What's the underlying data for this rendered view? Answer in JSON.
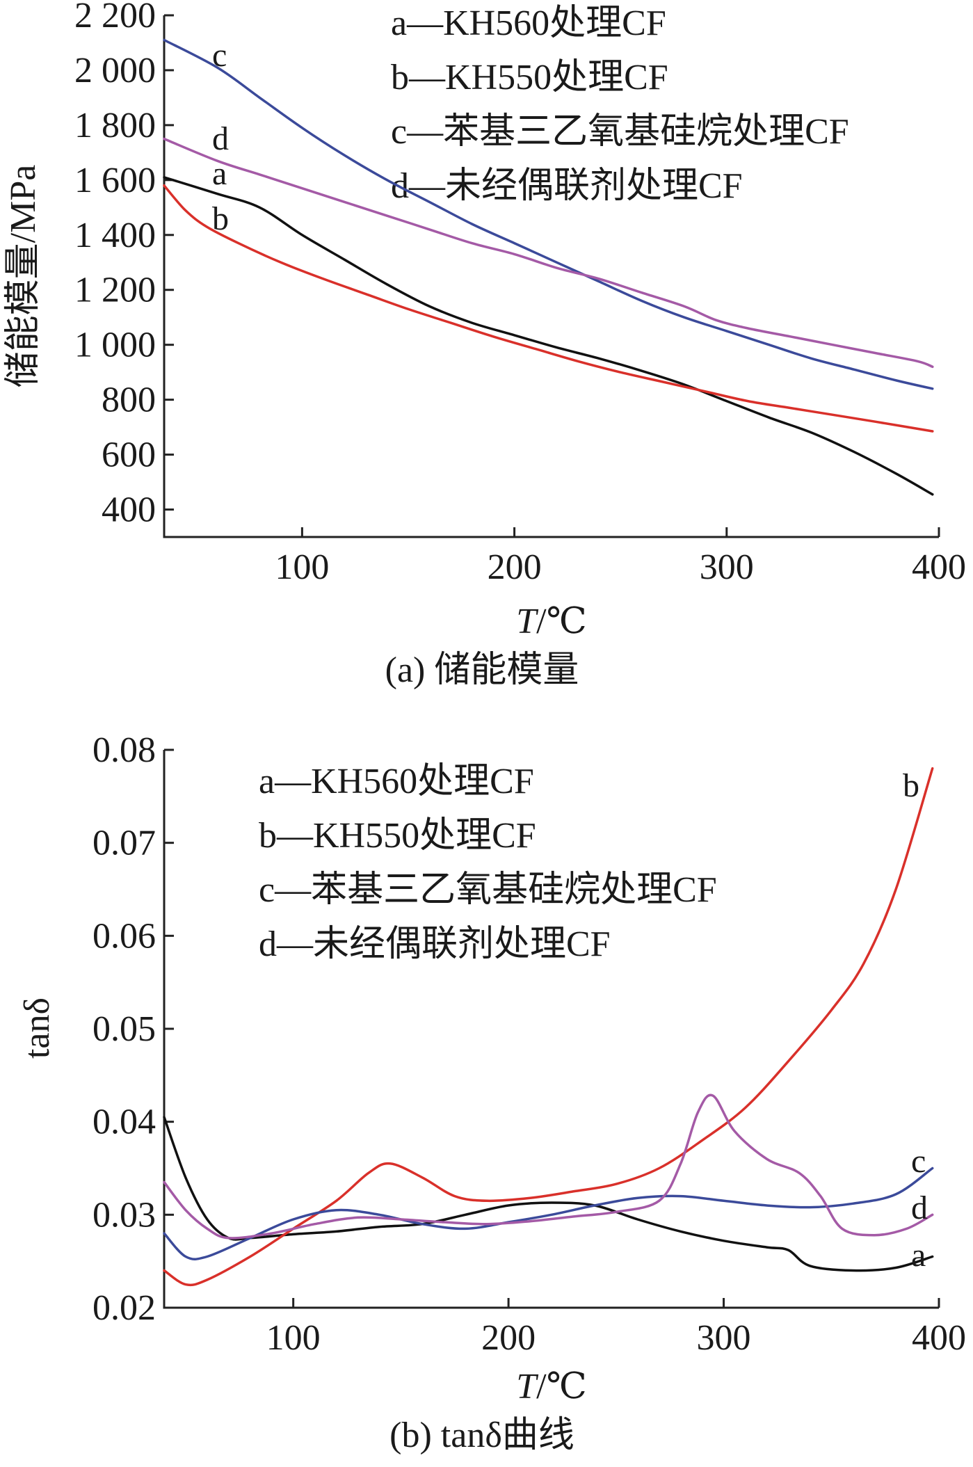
{
  "chart_data": [
    {
      "type": "line",
      "ylabel": "储能模量/MPa",
      "xlabel_italic": "T",
      "xlabel_unit": "/℃",
      "caption": "(a) 储能模量",
      "xlim": [
        35,
        400
      ],
      "ylim": [
        300,
        2200
      ],
      "xticks": [
        100,
        200,
        300,
        400
      ],
      "xtick_labels": [
        "100",
        "200",
        "300",
        "400"
      ],
      "yticks": [
        400,
        600,
        800,
        1000,
        1200,
        1400,
        1600,
        1800,
        2000,
        2200
      ],
      "ytick_labels": [
        "400",
        "600",
        "800",
        "1 000",
        "1 200",
        "1 400",
        "1 600",
        "1 800",
        "2 000",
        "2 200"
      ],
      "legend": [
        "a—KH560处理CF",
        "b—KH550处理CF",
        "c—苯基三乙氧基硅烷处理CF",
        "d—未经偶联剂处理CF"
      ],
      "legend_position": "top-right",
      "series": [
        {
          "name": "a",
          "color": "#111111",
          "x": [
            35,
            60,
            80,
            100,
            120,
            140,
            160,
            180,
            200,
            220,
            240,
            260,
            280,
            300,
            320,
            340,
            360,
            380,
            397
          ],
          "y": [
            1610,
            1550,
            1500,
            1400,
            1310,
            1220,
            1140,
            1080,
            1035,
            990,
            950,
            905,
            855,
            795,
            735,
            680,
            610,
            530,
            455
          ]
        },
        {
          "name": "b",
          "color": "#d9302a",
          "x": [
            35,
            45,
            55,
            70,
            90,
            110,
            130,
            150,
            170,
            190,
            210,
            230,
            250,
            270,
            290,
            310,
            330,
            350,
            370,
            397
          ],
          "y": [
            1580,
            1490,
            1430,
            1370,
            1300,
            1240,
            1185,
            1130,
            1080,
            1030,
            985,
            940,
            900,
            865,
            830,
            795,
            770,
            745,
            720,
            685
          ]
        },
        {
          "name": "c",
          "color": "#3b4a9a",
          "x": [
            35,
            60,
            80,
            100,
            120,
            140,
            160,
            180,
            200,
            220,
            240,
            260,
            280,
            300,
            320,
            340,
            360,
            380,
            397
          ],
          "y": [
            2110,
            2010,
            1900,
            1790,
            1690,
            1600,
            1520,
            1440,
            1370,
            1300,
            1230,
            1160,
            1100,
            1050,
            1000,
            950,
            910,
            870,
            840
          ]
        },
        {
          "name": "d",
          "color": "#a45aa6",
          "x": [
            35,
            60,
            80,
            100,
            120,
            140,
            160,
            180,
            200,
            220,
            240,
            260,
            280,
            295,
            310,
            330,
            350,
            370,
            390,
            397
          ],
          "y": [
            1750,
            1670,
            1620,
            1570,
            1520,
            1470,
            1420,
            1370,
            1330,
            1280,
            1240,
            1190,
            1140,
            1090,
            1060,
            1030,
            1000,
            970,
            940,
            920
          ]
        }
      ],
      "curve_labels": [
        {
          "text": "c",
          "series": "c"
        },
        {
          "text": "d",
          "series": "d"
        },
        {
          "text": "a",
          "series": "a"
        },
        {
          "text": "b",
          "series": "b"
        }
      ]
    },
    {
      "type": "line",
      "ylabel": "tanδ",
      "xlabel_italic": "T",
      "xlabel_unit": "/℃",
      "caption": "(b) tanδ曲线",
      "xlim": [
        40,
        400
      ],
      "ylim": [
        0.02,
        0.08
      ],
      "xticks": [
        100,
        200,
        300,
        400
      ],
      "xtick_labels": [
        "100",
        "200",
        "300",
        "400"
      ],
      "yticks": [
        0.02,
        0.03,
        0.04,
        0.05,
        0.06,
        0.07,
        0.08
      ],
      "ytick_labels": [
        "0.02",
        "0.03",
        "0.04",
        "0.05",
        "0.06",
        "0.07",
        "0.08"
      ],
      "legend": [
        "a—KH560处理CF",
        "b—KH550处理CF",
        "c—苯基三乙氧基硅烷处理CF",
        "d—未经偶联剂处理CF"
      ],
      "legend_position": "top-left",
      "series": [
        {
          "name": "a",
          "color": "#111111",
          "x": [
            40,
            50,
            60,
            70,
            80,
            100,
            120,
            140,
            160,
            180,
            200,
            220,
            240,
            260,
            280,
            300,
            320,
            330,
            340,
            360,
            380,
            397
          ],
          "y": [
            0.0405,
            0.034,
            0.0295,
            0.0275,
            0.0275,
            0.0279,
            0.0282,
            0.0287,
            0.029,
            0.03,
            0.031,
            0.0313,
            0.031,
            0.0295,
            0.0282,
            0.0272,
            0.0265,
            0.0262,
            0.0245,
            0.024,
            0.0243,
            0.0255
          ]
        },
        {
          "name": "b",
          "color": "#d9302a",
          "x": [
            40,
            50,
            60,
            80,
            100,
            120,
            135,
            145,
            160,
            175,
            190,
            210,
            230,
            250,
            270,
            290,
            310,
            330,
            350,
            365,
            380,
            397
          ],
          "y": [
            0.024,
            0.0225,
            0.023,
            0.0255,
            0.0285,
            0.0315,
            0.0345,
            0.0355,
            0.034,
            0.032,
            0.0315,
            0.0318,
            0.0325,
            0.0333,
            0.035,
            0.038,
            0.0415,
            0.0465,
            0.052,
            0.057,
            0.065,
            0.078
          ]
        },
        {
          "name": "c",
          "color": "#3b4a9a",
          "x": [
            40,
            50,
            60,
            80,
            100,
            120,
            140,
            160,
            180,
            200,
            220,
            240,
            260,
            280,
            300,
            320,
            340,
            360,
            380,
            397
          ],
          "y": [
            0.028,
            0.0255,
            0.0255,
            0.0275,
            0.0295,
            0.0305,
            0.03,
            0.029,
            0.0285,
            0.0292,
            0.03,
            0.031,
            0.0318,
            0.032,
            0.0315,
            0.031,
            0.0308,
            0.0312,
            0.0322,
            0.035
          ]
        },
        {
          "name": "d",
          "color": "#a45aa6",
          "x": [
            40,
            50,
            60,
            70,
            90,
            110,
            130,
            150,
            170,
            190,
            210,
            230,
            250,
            270,
            280,
            288,
            295,
            305,
            320,
            335,
            345,
            355,
            370,
            385,
            397
          ],
          "y": [
            0.0335,
            0.0305,
            0.0285,
            0.0275,
            0.028,
            0.029,
            0.0297,
            0.0295,
            0.0292,
            0.029,
            0.0293,
            0.0298,
            0.0303,
            0.0315,
            0.0355,
            0.041,
            0.0428,
            0.039,
            0.036,
            0.0345,
            0.032,
            0.0285,
            0.0278,
            0.0285,
            0.03
          ]
        }
      ],
      "curve_labels": [
        {
          "text": "b",
          "series": "b"
        },
        {
          "text": "c",
          "series": "c"
        },
        {
          "text": "d",
          "series": "d"
        },
        {
          "text": "a",
          "series": "a"
        }
      ]
    }
  ]
}
